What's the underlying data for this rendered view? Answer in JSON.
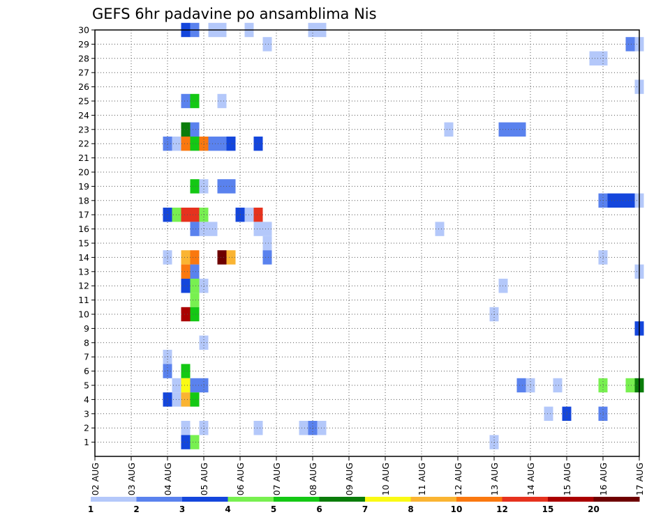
{
  "chart_data": {
    "type": "heatmap",
    "title": "GEFS 6hr padavine po ansamblima Nis",
    "x_tick_labels": [
      "02 AUG",
      "03 AUG",
      "04 AUG",
      "05 AUG",
      "06 AUG",
      "07 AUG",
      "08 AUG",
      "09 AUG",
      "10 AUG",
      "11 AUG",
      "12 AUG",
      "13 AUG",
      "14 AUG",
      "15 AUG",
      "16 AUG",
      "17 AUG"
    ],
    "y_tick_labels": [
      "1",
      "2",
      "3",
      "4",
      "5",
      "6",
      "7",
      "8",
      "9",
      "10",
      "11",
      "12",
      "13",
      "14",
      "15",
      "16",
      "17",
      "18",
      "19",
      "20",
      "21",
      "22",
      "23",
      "24",
      "25",
      "26",
      "27",
      "28",
      "29",
      "30"
    ],
    "xlim_hours": [
      0,
      360
    ],
    "ylim": [
      0,
      30
    ],
    "grid": true,
    "legend_placement": "bottom",
    "colorbar": {
      "labels": [
        "1",
        "2",
        "3",
        "4",
        "5",
        "6",
        "7",
        "8",
        "10",
        "12",
        "15",
        "20"
      ],
      "colors": [
        "#b4c8fa",
        "#5a82ee",
        "#1446dc",
        "#78f050",
        "#14c814",
        "#0a7c0a",
        "#fafa14",
        "#fab432",
        "#fa780f",
        "#e6321e",
        "#aa0000",
        "#6e0000"
      ]
    },
    "cells": [
      {
        "member": 30,
        "hour": 60,
        "color": "#1446dc"
      },
      {
        "member": 30,
        "hour": 66,
        "color": "#5a82ee"
      },
      {
        "member": 30,
        "hour": 78,
        "color": "#b4c8fa"
      },
      {
        "member": 30,
        "hour": 84,
        "color": "#b4c8fa"
      },
      {
        "member": 30,
        "hour": 102,
        "color": "#b4c8fa"
      },
      {
        "member": 30,
        "hour": 144,
        "color": "#b4c8fa"
      },
      {
        "member": 30,
        "hour": 150,
        "color": "#b4c8fa"
      },
      {
        "member": 29,
        "hour": 114,
        "color": "#b4c8fa"
      },
      {
        "member": 29,
        "hour": 354,
        "color": "#5a82ee"
      },
      {
        "member": 29,
        "hour": 360,
        "color": "#b4c8fa"
      },
      {
        "member": 28,
        "hour": 330,
        "color": "#b4c8fa"
      },
      {
        "member": 28,
        "hour": 336,
        "color": "#b4c8fa"
      },
      {
        "member": 26,
        "hour": 360,
        "color": "#b4c8fa"
      },
      {
        "member": 25,
        "hour": 60,
        "color": "#5a82ee"
      },
      {
        "member": 25,
        "hour": 66,
        "color": "#14c814"
      },
      {
        "member": 25,
        "hour": 84,
        "color": "#b4c8fa"
      },
      {
        "member": 23,
        "hour": 60,
        "color": "#0a7c0a"
      },
      {
        "member": 23,
        "hour": 66,
        "color": "#5a82ee"
      },
      {
        "member": 23,
        "hour": 234,
        "color": "#b4c8fa"
      },
      {
        "member": 23,
        "hour": 270,
        "color": "#5a82ee"
      },
      {
        "member": 23,
        "hour": 276,
        "color": "#5a82ee"
      },
      {
        "member": 23,
        "hour": 282,
        "color": "#5a82ee"
      },
      {
        "member": 22,
        "hour": 48,
        "color": "#5a82ee"
      },
      {
        "member": 22,
        "hour": 54,
        "color": "#b4c8fa"
      },
      {
        "member": 22,
        "hour": 60,
        "color": "#fa780f"
      },
      {
        "member": 22,
        "hour": 66,
        "color": "#14c814"
      },
      {
        "member": 22,
        "hour": 72,
        "color": "#fa780f"
      },
      {
        "member": 22,
        "hour": 78,
        "color": "#5a82ee"
      },
      {
        "member": 22,
        "hour": 84,
        "color": "#5a82ee"
      },
      {
        "member": 22,
        "hour": 90,
        "color": "#1446dc"
      },
      {
        "member": 22,
        "hour": 108,
        "color": "#1446dc"
      },
      {
        "member": 19,
        "hour": 66,
        "color": "#14c814"
      },
      {
        "member": 19,
        "hour": 72,
        "color": "#b4c8fa"
      },
      {
        "member": 19,
        "hour": 84,
        "color": "#5a82ee"
      },
      {
        "member": 19,
        "hour": 90,
        "color": "#5a82ee"
      },
      {
        "member": 18,
        "hour": 336,
        "color": "#5a82ee"
      },
      {
        "member": 18,
        "hour": 342,
        "color": "#1446dc"
      },
      {
        "member": 18,
        "hour": 348,
        "color": "#1446dc"
      },
      {
        "member": 18,
        "hour": 354,
        "color": "#1446dc"
      },
      {
        "member": 18,
        "hour": 360,
        "color": "#b4c8fa"
      },
      {
        "member": 17,
        "hour": 48,
        "color": "#1446dc"
      },
      {
        "member": 17,
        "hour": 54,
        "color": "#78f050"
      },
      {
        "member": 17,
        "hour": 60,
        "color": "#e6321e"
      },
      {
        "member": 17,
        "hour": 66,
        "color": "#e6321e"
      },
      {
        "member": 17,
        "hour": 72,
        "color": "#78f050"
      },
      {
        "member": 17,
        "hour": 96,
        "color": "#1446dc"
      },
      {
        "member": 17,
        "hour": 102,
        "color": "#b4c8fa"
      },
      {
        "member": 17,
        "hour": 108,
        "color": "#e6321e"
      },
      {
        "member": 16,
        "hour": 66,
        "color": "#5a82ee"
      },
      {
        "member": 16,
        "hour": 72,
        "color": "#b4c8fa"
      },
      {
        "member": 16,
        "hour": 78,
        "color": "#b4c8fa"
      },
      {
        "member": 16,
        "hour": 108,
        "color": "#b4c8fa"
      },
      {
        "member": 16,
        "hour": 114,
        "color": "#b4c8fa"
      },
      {
        "member": 16,
        "hour": 228,
        "color": "#b4c8fa"
      },
      {
        "member": 15,
        "hour": 114,
        "color": "#b4c8fa"
      },
      {
        "member": 14,
        "hour": 48,
        "color": "#b4c8fa"
      },
      {
        "member": 14,
        "hour": 60,
        "color": "#fab432"
      },
      {
        "member": 14,
        "hour": 66,
        "color": "#fa780f"
      },
      {
        "member": 14,
        "hour": 84,
        "color": "#6e0000"
      },
      {
        "member": 14,
        "hour": 90,
        "color": "#fab432"
      },
      {
        "member": 14,
        "hour": 114,
        "color": "#5a82ee"
      },
      {
        "member": 14,
        "hour": 336,
        "color": "#b4c8fa"
      },
      {
        "member": 13,
        "hour": 60,
        "color": "#fa780f"
      },
      {
        "member": 13,
        "hour": 66,
        "color": "#5a82ee"
      },
      {
        "member": 13,
        "hour": 360,
        "color": "#b4c8fa"
      },
      {
        "member": 12,
        "hour": 60,
        "color": "#1446dc"
      },
      {
        "member": 12,
        "hour": 66,
        "color": "#78f050"
      },
      {
        "member": 12,
        "hour": 72,
        "color": "#b4c8fa"
      },
      {
        "member": 12,
        "hour": 270,
        "color": "#b4c8fa"
      },
      {
        "member": 11,
        "hour": 66,
        "color": "#78f050"
      },
      {
        "member": 10,
        "hour": 60,
        "color": "#aa0000"
      },
      {
        "member": 10,
        "hour": 66,
        "color": "#14c814"
      },
      {
        "member": 10,
        "hour": 264,
        "color": "#b4c8fa"
      },
      {
        "member": 9,
        "hour": 360,
        "color": "#1446dc"
      },
      {
        "member": 8,
        "hour": 72,
        "color": "#b4c8fa"
      },
      {
        "member": 7,
        "hour": 48,
        "color": "#b4c8fa"
      },
      {
        "member": 6,
        "hour": 48,
        "color": "#5a82ee"
      },
      {
        "member": 6,
        "hour": 60,
        "color": "#14c814"
      },
      {
        "member": 5,
        "hour": 54,
        "color": "#b4c8fa"
      },
      {
        "member": 5,
        "hour": 60,
        "color": "#fafa14"
      },
      {
        "member": 5,
        "hour": 66,
        "color": "#5a82ee"
      },
      {
        "member": 5,
        "hour": 72,
        "color": "#5a82ee"
      },
      {
        "member": 5,
        "hour": 282,
        "color": "#5a82ee"
      },
      {
        "member": 5,
        "hour": 288,
        "color": "#b4c8fa"
      },
      {
        "member": 5,
        "hour": 306,
        "color": "#b4c8fa"
      },
      {
        "member": 5,
        "hour": 336,
        "color": "#78f050"
      },
      {
        "member": 5,
        "hour": 354,
        "color": "#78f050"
      },
      {
        "member": 5,
        "hour": 360,
        "color": "#0a7c0a"
      },
      {
        "member": 4,
        "hour": 48,
        "color": "#1446dc"
      },
      {
        "member": 4,
        "hour": 54,
        "color": "#b4c8fa"
      },
      {
        "member": 4,
        "hour": 60,
        "color": "#fab432"
      },
      {
        "member": 4,
        "hour": 66,
        "color": "#14c814"
      },
      {
        "member": 3,
        "hour": 300,
        "color": "#b4c8fa"
      },
      {
        "member": 3,
        "hour": 312,
        "color": "#1446dc"
      },
      {
        "member": 3,
        "hour": 336,
        "color": "#5a82ee"
      },
      {
        "member": 2,
        "hour": 60,
        "color": "#b4c8fa"
      },
      {
        "member": 2,
        "hour": 72,
        "color": "#b4c8fa"
      },
      {
        "member": 2,
        "hour": 108,
        "color": "#b4c8fa"
      },
      {
        "member": 2,
        "hour": 138,
        "color": "#b4c8fa"
      },
      {
        "member": 2,
        "hour": 144,
        "color": "#5a82ee"
      },
      {
        "member": 2,
        "hour": 150,
        "color": "#b4c8fa"
      },
      {
        "member": 1,
        "hour": 60,
        "color": "#1446dc"
      },
      {
        "member": 1,
        "hour": 66,
        "color": "#78f050"
      },
      {
        "member": 1,
        "hour": 264,
        "color": "#b4c8fa"
      }
    ]
  }
}
